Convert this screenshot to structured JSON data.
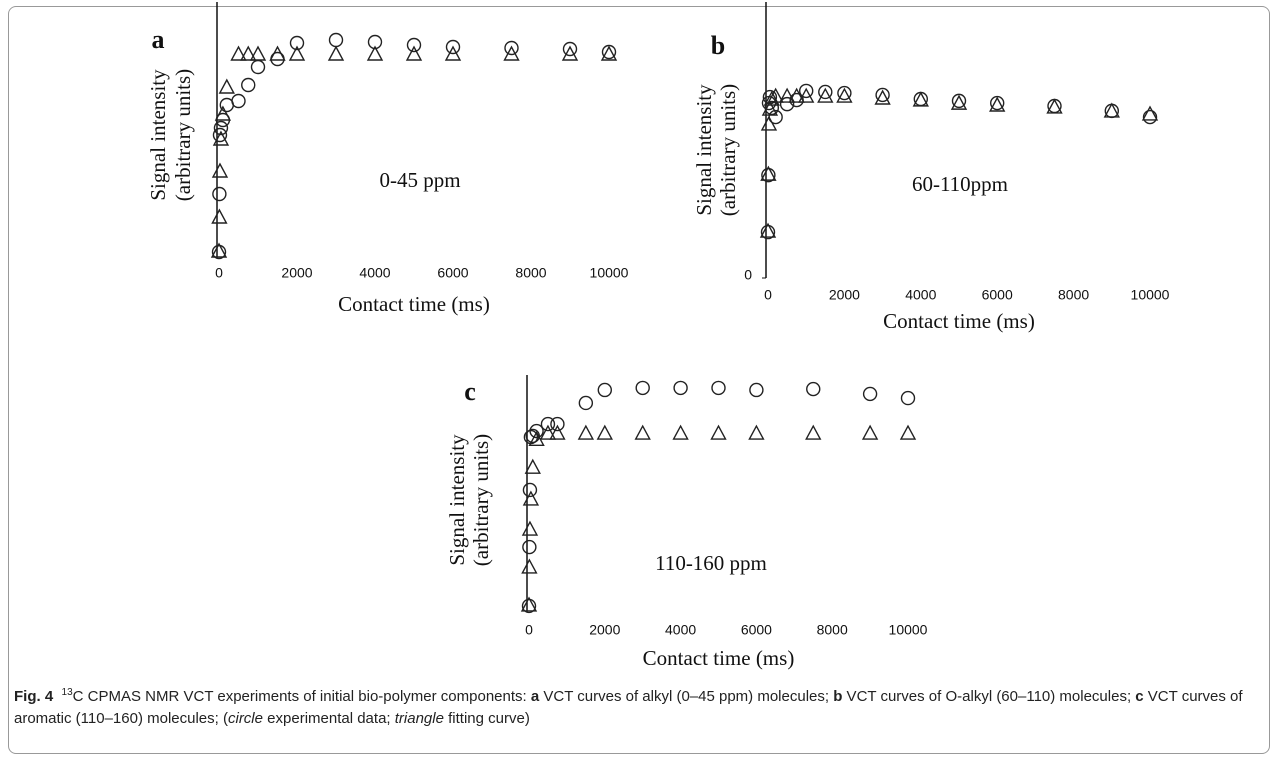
{
  "chart_data": [
    {
      "type": "scatter",
      "panel_label": "a",
      "annotation": "0-45 ppm",
      "ylabel": "Signal intensity",
      "ylabel2": "(arbitrary  units)",
      "xlabel": "Contact time (ms)",
      "x": [
        0,
        10,
        25,
        50,
        100,
        200,
        500,
        750,
        1000,
        1500,
        2000,
        3000,
        4000,
        5000,
        6000,
        7500,
        9000,
        10000
      ],
      "xlim": [
        0,
        10000
      ],
      "xticks": [
        0,
        2000,
        4000,
        6000,
        8000,
        10000
      ],
      "ylim": [
        0,
        100
      ],
      "series": [
        {
          "marker": "circle",
          "color": "#222222",
          "values": [
            2.4,
            25.6,
            49.2,
            52,
            55.2,
            61.2,
            62.8,
            69.2,
            76.4,
            79.6,
            86,
            87.2,
            86.4,
            85.2,
            84.4,
            84,
            83.6,
            82.4
          ]
        },
        {
          "marker": "triangle",
          "color": "#222222",
          "values": [
            2.4,
            16,
            34.4,
            47.2,
            57.2,
            68,
            81.2,
            81.2,
            81.2,
            81.2,
            81.2,
            81.2,
            81.2,
            81.2,
            81.2,
            81.2,
            81.2,
            81.2
          ]
        }
      ]
    },
    {
      "type": "scatter",
      "panel_label": "b",
      "annotation": "60-110ppm",
      "ylabel": "Signal intensity",
      "ylabel2": "(arbitrary  units)",
      "xlabel": "Contact time (ms)",
      "x": [
        0,
        10,
        25,
        50,
        100,
        200,
        500,
        750,
        1000,
        1500,
        2000,
        3000,
        4000,
        5000,
        6000,
        7500,
        9000,
        10000
      ],
      "xlim": [
        0,
        10000
      ],
      "xticks": [
        0,
        2000,
        4000,
        6000,
        8000,
        10000
      ],
      "ylim": [
        0,
        100
      ],
      "yticks": [
        0
      ],
      "series": [
        {
          "marker": "circle",
          "color": "#222222",
          "values": [
            17,
            38.1,
            64.8,
            67,
            63,
            59.6,
            64.4,
            65.9,
            69.3,
            68.9,
            68.5,
            67.8,
            66.3,
            65.6,
            64.8,
            63.7,
            61.9,
            59.6
          ]
        },
        {
          "marker": "triangle",
          "color": "#222222",
          "values": [
            17,
            38.1,
            56.7,
            62.2,
            65.9,
            67,
            67,
            67,
            67,
            67,
            67,
            66.3,
            65.6,
            64.4,
            63.7,
            63,
            61.5,
            60.4
          ]
        }
      ]
    },
    {
      "type": "scatter",
      "panel_label": "c",
      "annotation": "110-160 ppm",
      "ylabel": "Signal intensity",
      "ylabel2": "(arbitrary  units)",
      "xlabel": "Contact time (ms)",
      "x": [
        0,
        10,
        25,
        50,
        100,
        200,
        500,
        750,
        1500,
        2000,
        3000,
        4000,
        5000,
        6000,
        7500,
        9000,
        10000
      ],
      "xlim": [
        0,
        10000
      ],
      "xticks": [
        0,
        2000,
        4000,
        6000,
        8000,
        10000
      ],
      "ylim": [
        0,
        100
      ],
      "series": [
        {
          "marker": "circle",
          "color": "#222222",
          "values": [
            2.6,
            28,
            52.6,
            75.4,
            75.9,
            78,
            81,
            81,
            90.1,
            95.7,
            96.6,
            96.6,
            96.6,
            95.7,
            96.1,
            94,
            92.2
          ]
        },
        {
          "marker": "triangle",
          "color": "#222222",
          "values": [
            2.6,
            19,
            35.3,
            48.3,
            62,
            74,
            76.7,
            76.7,
            76.7,
            76.7,
            76.7,
            76.7,
            76.7,
            76.7,
            76.7,
            76.7,
            76.7
          ]
        }
      ]
    }
  ],
  "caption": {
    "label": "Fig. 4",
    "superscript": "13",
    "text": "C CPMAS NMR VCT experiments of initial bio-polymer components: ",
    "items": [
      {
        "letter": "a",
        "text": " VCT curves of alkyl (0–45 ppm) molecules; "
      },
      {
        "letter": "b",
        "text": " VCT curves of O-alkyl (60–110) molecules; "
      },
      {
        "letter": "c",
        "text": " VCT curves of aromatic (110–160) molecules; ("
      }
    ],
    "notes": [
      {
        "term": "circle",
        "text": " experimental data; "
      },
      {
        "term": "triangle",
        "text": " fitting curve)"
      }
    ]
  }
}
